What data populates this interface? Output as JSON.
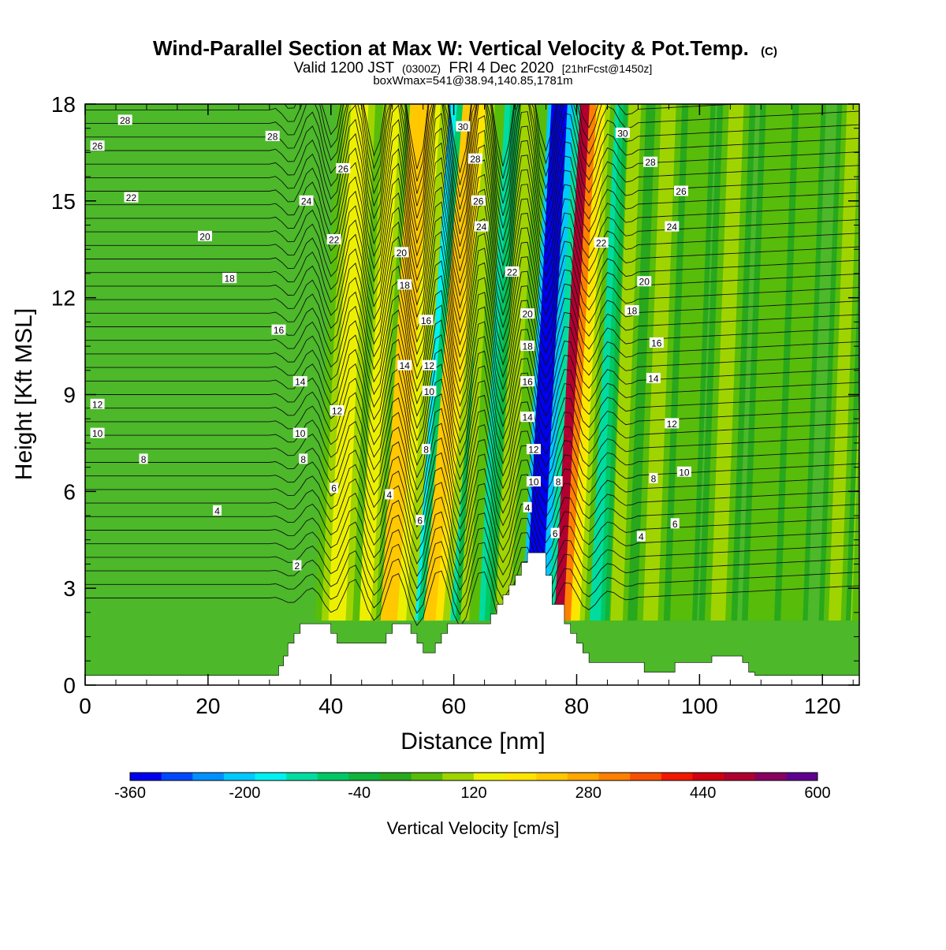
{
  "header": {
    "title": "Wind-Parallel Section at Max W: Vertical Velocity & Pot.Temp.",
    "copyright_mark": "(C)",
    "valid_prefix": "Valid 1200 JST",
    "valid_utc": "(0300Z)",
    "valid_date": "FRI 4 Dec 2020",
    "forecast_note": "[21hrFcst@1450z]",
    "box_info": "boxWmax=541@38.94,140.85,1781m"
  },
  "chart_data": {
    "type": "heatmap",
    "xlabel": "Distance [nm]",
    "ylabel": "Height [Kft MSL]",
    "xlim": [
      0,
      126
    ],
    "ylim": [
      0,
      18
    ],
    "x_ticks": [
      0,
      20,
      40,
      60,
      80,
      100,
      120
    ],
    "y_ticks": [
      0,
      3,
      6,
      9,
      12,
      15,
      18
    ],
    "x_tick_labels": [
      "0",
      "20",
      "40",
      "60",
      "80",
      "100",
      "120"
    ],
    "y_tick_labels": [
      "0",
      "3",
      "6",
      "9",
      "12",
      "15",
      "18"
    ],
    "colorbar": {
      "title": "Vertical Velocity [cm/s]",
      "tick_labels": [
        "-360",
        "-200",
        "-40",
        "120",
        "280",
        "440",
        "600"
      ],
      "tick_values": [
        -360,
        -200,
        -40,
        120,
        280,
        440,
        600
      ],
      "colors": [
        "#0000ee",
        "#0048ff",
        "#0090ff",
        "#00c8ff",
        "#00f0f0",
        "#00dca0",
        "#00c864",
        "#10b43c",
        "#28a81c",
        "#58bc0a",
        "#a0d400",
        "#ecf000",
        "#ffe400",
        "#ffc800",
        "#ffa800",
        "#ff8000",
        "#f85000",
        "#f01800",
        "#d00010",
        "#b00030",
        "#880060",
        "#600090"
      ]
    },
    "velocity_bands": [
      {
        "x": 41,
        "w": 1.4,
        "v": 150
      },
      {
        "x": 45.5,
        "w": 1.0,
        "v": 130
      },
      {
        "x": 49,
        "w": 1.8,
        "v": 230
      },
      {
        "x": 52,
        "w": 1.2,
        "v": -230
      },
      {
        "x": 55.5,
        "w": 1.5,
        "v": 250
      },
      {
        "x": 58.5,
        "w": 1.0,
        "v": -150
      },
      {
        "x": 61.5,
        "w": 1.0,
        "v": 110
      },
      {
        "x": 64,
        "w": 1.0,
        "v": -120
      },
      {
        "x": 68,
        "w": 1.2,
        "v": 100
      },
      {
        "x": 73,
        "w": 1.3,
        "v": -330
      },
      {
        "x": 76.5,
        "w": 1.4,
        "v": 470
      },
      {
        "x": 79.5,
        "w": 1.0,
        "v": 150
      },
      {
        "x": 83,
        "w": 0.9,
        "v": -100
      },
      {
        "x": 86.5,
        "w": 1.0,
        "v": 90
      },
      {
        "x": 92,
        "w": 1.2,
        "v": 80
      },
      {
        "x": 97,
        "w": 1.0,
        "v": 70
      },
      {
        "x": 103,
        "w": 1.2,
        "v": 90
      },
      {
        "x": 110,
        "w": 1.2,
        "v": 70
      },
      {
        "x": 115,
        "w": 1.0,
        "v": 60
      },
      {
        "x": 122,
        "w": 1.0,
        "v": 90
      },
      {
        "x": 124,
        "w": 0.8,
        "v": 100
      }
    ],
    "terrain": [
      [
        0,
        0.3
      ],
      [
        31,
        0.3
      ],
      [
        31.5,
        0.6
      ],
      [
        32.3,
        0.9
      ],
      [
        33,
        1.3
      ],
      [
        34,
        1.6
      ],
      [
        35,
        1.9
      ],
      [
        39,
        1.9
      ],
      [
        40,
        1.6
      ],
      [
        41,
        1.3
      ],
      [
        48,
        1.3
      ],
      [
        49,
        1.6
      ],
      [
        50,
        1.9
      ],
      [
        52,
        1.9
      ],
      [
        53,
        1.6
      ],
      [
        54,
        1.3
      ],
      [
        55,
        1.0
      ],
      [
        56,
        1.0
      ],
      [
        57,
        1.3
      ],
      [
        58,
        1.6
      ],
      [
        59,
        1.9
      ],
      [
        65,
        1.9
      ],
      [
        66,
        2.2
      ],
      [
        67,
        2.5
      ],
      [
        68,
        2.8
      ],
      [
        69,
        3.1
      ],
      [
        70,
        3.4
      ],
      [
        71,
        3.8
      ],
      [
        72,
        4.1
      ],
      [
        74,
        4.1
      ],
      [
        75,
        3.4
      ],
      [
        76,
        2.5
      ],
      [
        78,
        1.9
      ],
      [
        79,
        1.6
      ],
      [
        80,
        1.3
      ],
      [
        81,
        1.0
      ],
      [
        82,
        0.7
      ],
      [
        90,
        0.7
      ],
      [
        91,
        0.4
      ],
      [
        95,
        0.4
      ],
      [
        96,
        0.7
      ],
      [
        101,
        0.7
      ],
      [
        102,
        0.9
      ],
      [
        106,
        0.9
      ],
      [
        107,
        0.7
      ],
      [
        108,
        0.4
      ],
      [
        109,
        0.3
      ],
      [
        126,
        0.3
      ]
    ],
    "isotherm_labels": [
      {
        "text": "28",
        "x": 6.5,
        "y": 17.5
      },
      {
        "text": "26",
        "x": 2,
        "y": 16.7
      },
      {
        "text": "22",
        "x": 7.5,
        "y": 15.1
      },
      {
        "text": "20",
        "x": 19.5,
        "y": 13.9
      },
      {
        "text": "18",
        "x": 23.5,
        "y": 12.6
      },
      {
        "text": "16",
        "x": 31.5,
        "y": 11.0
      },
      {
        "text": "14",
        "x": 35,
        "y": 9.4
      },
      {
        "text": "12",
        "x": 2,
        "y": 8.7
      },
      {
        "text": "10",
        "x": 2,
        "y": 7.8
      },
      {
        "text": "8",
        "x": 9.5,
        "y": 7.0
      },
      {
        "text": "4",
        "x": 21.5,
        "y": 5.4
      },
      {
        "text": "2",
        "x": 34.5,
        "y": 3.7
      },
      {
        "text": "28",
        "x": 30.5,
        "y": 17.0
      },
      {
        "text": "26",
        "x": 42,
        "y": 16.0
      },
      {
        "text": "24",
        "x": 36,
        "y": 15.0
      },
      {
        "text": "22",
        "x": 40.5,
        "y": 13.8
      },
      {
        "text": "12",
        "x": 41,
        "y": 8.5
      },
      {
        "text": "10",
        "x": 35,
        "y": 7.8
      },
      {
        "text": "8",
        "x": 35.5,
        "y": 7.0
      },
      {
        "text": "6",
        "x": 40.5,
        "y": 6.1
      },
      {
        "text": "20",
        "x": 51.5,
        "y": 13.4
      },
      {
        "text": "18",
        "x": 52,
        "y": 12.4
      },
      {
        "text": "16",
        "x": 55.5,
        "y": 11.3
      },
      {
        "text": "14",
        "x": 52,
        "y": 9.9
      },
      {
        "text": "12",
        "x": 56,
        "y": 9.9
      },
      {
        "text": "10",
        "x": 56,
        "y": 9.1
      },
      {
        "text": "8",
        "x": 55.5,
        "y": 7.3
      },
      {
        "text": "4",
        "x": 49.5,
        "y": 5.9
      },
      {
        "text": "6",
        "x": 54.5,
        "y": 5.1
      },
      {
        "text": "30",
        "x": 61.5,
        "y": 17.3
      },
      {
        "text": "28",
        "x": 63.5,
        "y": 16.3
      },
      {
        "text": "26",
        "x": 64,
        "y": 15.0
      },
      {
        "text": "24",
        "x": 64.5,
        "y": 14.2
      },
      {
        "text": "22",
        "x": 69.5,
        "y": 12.8
      },
      {
        "text": "20",
        "x": 72,
        "y": 11.5
      },
      {
        "text": "18",
        "x": 72,
        "y": 10.5
      },
      {
        "text": "16",
        "x": 72,
        "y": 9.4
      },
      {
        "text": "14",
        "x": 72,
        "y": 8.3
      },
      {
        "text": "12",
        "x": 73,
        "y": 7.3
      },
      {
        "text": "10",
        "x": 73,
        "y": 6.3
      },
      {
        "text": "4",
        "x": 72,
        "y": 5.5
      },
      {
        "text": "8",
        "x": 77,
        "y": 6.3
      },
      {
        "text": "6",
        "x": 76.5,
        "y": 4.7
      },
      {
        "text": "30",
        "x": 87.5,
        "y": 17.1
      },
      {
        "text": "28",
        "x": 92,
        "y": 16.2
      },
      {
        "text": "26",
        "x": 97,
        "y": 15.3
      },
      {
        "text": "24",
        "x": 95.5,
        "y": 14.2
      },
      {
        "text": "22",
        "x": 84,
        "y": 13.7
      },
      {
        "text": "20",
        "x": 91,
        "y": 12.5
      },
      {
        "text": "18",
        "x": 89,
        "y": 11.6
      },
      {
        "text": "16",
        "x": 93,
        "y": 10.6
      },
      {
        "text": "14",
        "x": 92.5,
        "y": 9.5
      },
      {
        "text": "12",
        "x": 95.5,
        "y": 8.1
      },
      {
        "text": "10",
        "x": 97.5,
        "y": 6.6
      },
      {
        "text": "8",
        "x": 92.5,
        "y": 6.4
      },
      {
        "text": "6",
        "x": 96,
        "y": 5.0
      },
      {
        "text": "4",
        "x": 90.5,
        "y": 4.6
      }
    ]
  }
}
